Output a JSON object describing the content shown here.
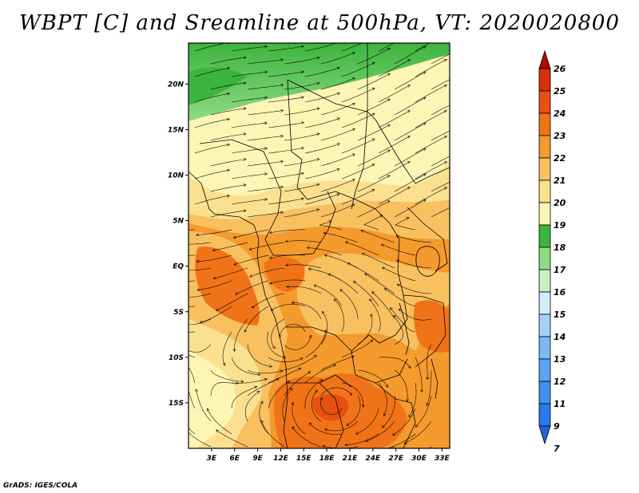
{
  "title": "WBPT [C] and Sreamline at 500hPa, VT: 2020020800",
  "footer": "GrADS: IGES/COLA",
  "map": {
    "lat_labels": [
      "20N",
      "15N",
      "10N",
      "5N",
      "EQ",
      "5S",
      "10S",
      "15S"
    ],
    "lat_values": [
      20,
      15,
      10,
      5,
      0,
      -5,
      -10,
      -15
    ],
    "lon_labels": [
      "3E",
      "6E",
      "9E",
      "12E",
      "15E",
      "18E",
      "21E",
      "24E",
      "27E",
      "30E",
      "33E"
    ],
    "lon_values": [
      3,
      6,
      9,
      12,
      15,
      18,
      21,
      24,
      27,
      30,
      33
    ],
    "lat_range": [
      -20,
      24.5
    ],
    "lon_range": [
      0,
      34
    ]
  },
  "colorbar": {
    "labels": [
      "7",
      "9",
      "11",
      "12",
      "13",
      "14",
      "15",
      "16",
      "17",
      "18",
      "19",
      "20",
      "21",
      "22",
      "23",
      "24",
      "25",
      "26"
    ],
    "colors": [
      "#1f62d8",
      "#2a7ae8",
      "#3f92ee",
      "#5aa6f2",
      "#7dbaf5",
      "#a6d2f8",
      "#d3ecfb",
      "#c8f0c0",
      "#8fdc86",
      "#3db43d",
      "#fdf5b4",
      "#fbe08f",
      "#f9c060",
      "#f59a2d",
      "#f07318",
      "#e85010",
      "#d8300a",
      "#b00b05"
    ]
  },
  "colors": {
    "frame": "#000000",
    "streamline": "#000000",
    "border": "#000000"
  }
}
